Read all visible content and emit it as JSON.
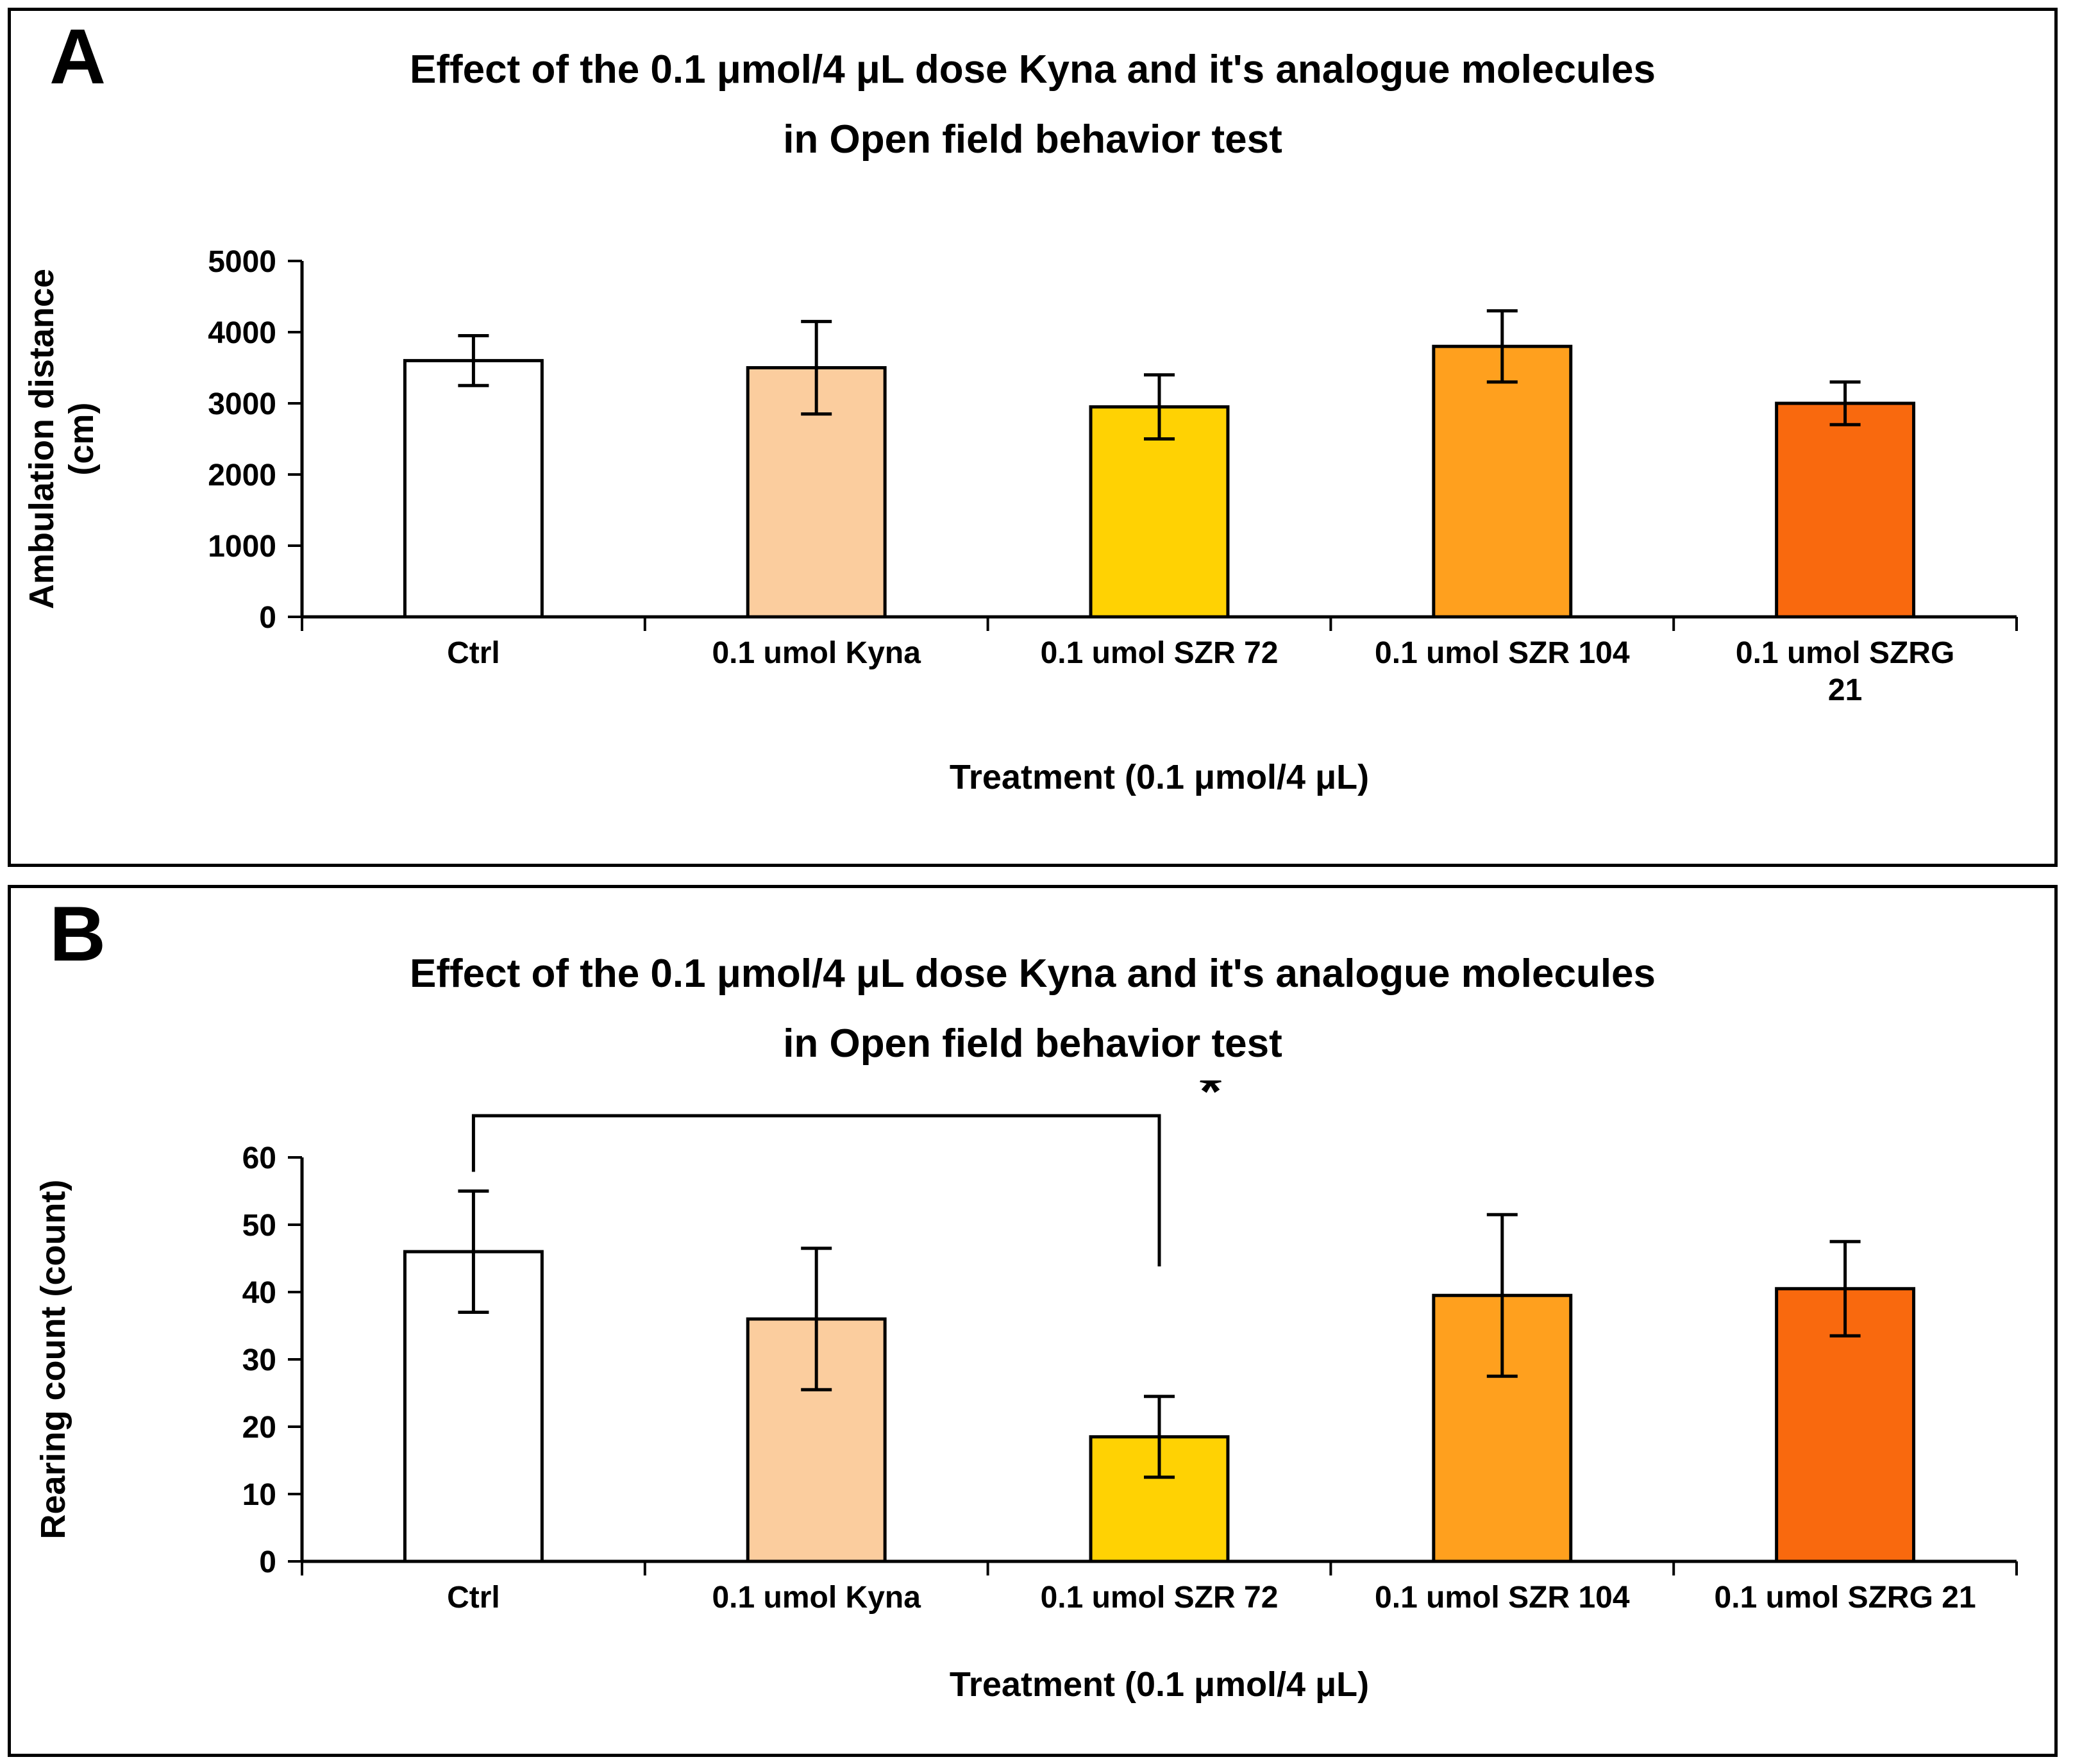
{
  "panels": [
    {
      "letter": "A"
    },
    {
      "letter": "B"
    }
  ],
  "colors": {
    "axis": "#000000",
    "bar_border": "#000000",
    "error_bar": "#000000",
    "background": "#ffffff"
  },
  "chart_data": [
    {
      "type": "bar",
      "panel": "A",
      "title": "Effect of the 0.1 μmol/4 μL dose Kyna and it's analogue molecules",
      "subtitle": "in Open field behavior test",
      "categories": [
        "Ctrl",
        "0.1 umol Kyna",
        "0.1 umol SZR 72",
        "0.1 umol SZR 104",
        "0.1 umol SZRG\n21"
      ],
      "values": [
        3600,
        3500,
        2950,
        3800,
        3000
      ],
      "errors": [
        350,
        650,
        450,
        500,
        300
      ],
      "bar_colors": [
        "#FFFFFF",
        "#FBCD9E",
        "#FFD203",
        "#FFA01E",
        "#F9690E"
      ],
      "xlabel": "Treatment (0.1 μmol/4 μL)",
      "ylabel": "Ambulation distance\n(cm)",
      "ylim": [
        0,
        5000
      ],
      "yticks": [
        0,
        1000,
        2000,
        3000,
        4000,
        5000
      ],
      "grid": false,
      "legend": "none"
    },
    {
      "type": "bar",
      "panel": "B",
      "title": "Effect of the 0.1 μmol/4 μL dose Kyna and it's analogue molecules",
      "subtitle": "in Open field behavior test",
      "categories": [
        "Ctrl",
        "0.1 umol Kyna",
        "0.1 umol SZR 72",
        "0.1 umol SZR 104",
        "0.1 umol SZRG 21"
      ],
      "values": [
        46,
        36,
        18.5,
        39.5,
        40.5
      ],
      "errors": [
        9,
        10.5,
        6,
        12,
        7
      ],
      "bar_colors": [
        "#FFFFFF",
        "#FBCD9E",
        "#FFD203",
        "#FFA01E",
        "#F9690E"
      ],
      "xlabel": "Treatment (0.1 μmol/4 μL)",
      "ylabel": "Rearing count (count)",
      "ylim": [
        0,
        60
      ],
      "yticks": [
        0,
        10,
        20,
        30,
        40,
        50,
        60
      ],
      "grid": false,
      "legend": "none",
      "significance": {
        "from": 0,
        "to": 2,
        "label": "*"
      }
    }
  ]
}
